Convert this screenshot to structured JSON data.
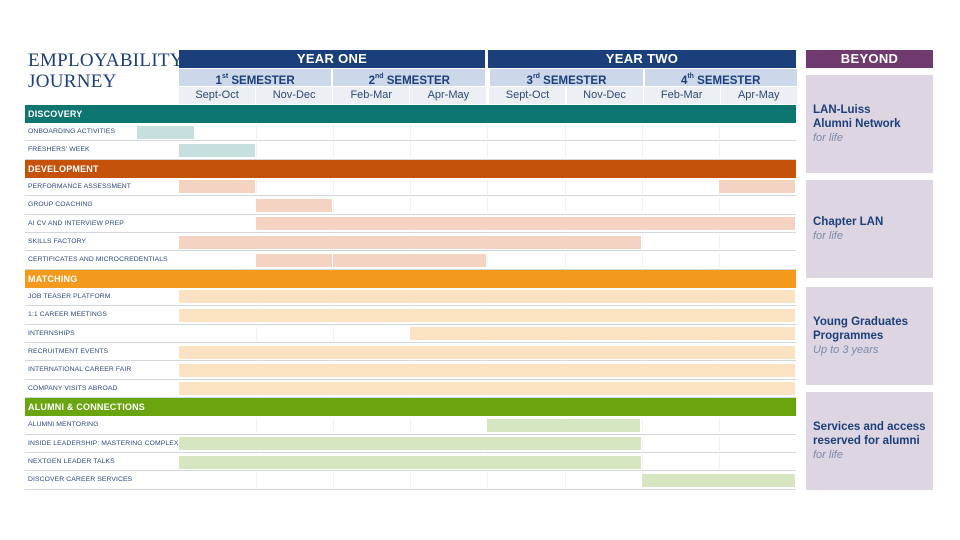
{
  "title": {
    "line1": "EMPLOYABILITY",
    "line2": "JOURNEY"
  },
  "years": [
    {
      "label": "YEAR ONE"
    },
    {
      "label": "YEAR TWO"
    }
  ],
  "semesters": [
    {
      "num": "1",
      "sup": "st",
      "label": "SEMESTER"
    },
    {
      "num": "2",
      "sup": "nd",
      "label": "SEMESTER"
    },
    {
      "num": "3",
      "sup": "rd",
      "label": "SEMESTER"
    },
    {
      "num": "4",
      "sup": "th",
      "label": "SEMESTER"
    }
  ],
  "periods": [
    "Sept-Oct",
    "Nov-Dec",
    "Feb-Mar",
    "Apr-May",
    "Sept-Oct",
    "Nov-Dec",
    "Feb-Mar",
    "Apr-May"
  ],
  "sections": [
    {
      "name": "DISCOVERY",
      "color": "#0e7670",
      "bar_color": "#c5e0df",
      "rows": [
        {
          "label": "ONBOARDING ACTIVITIES",
          "spans": [
            [
              -0.55,
              0.2
            ]
          ]
        },
        {
          "label": "FRESHERS' WEEK",
          "spans": [
            [
              0,
              1
            ]
          ]
        }
      ]
    },
    {
      "name": "DEVELOPMENT",
      "color": "#c4520a",
      "bar_color": "#f4d3c3",
      "rows": [
        {
          "label": "PERFORMANCE ASSESSMENT",
          "spans": [
            [
              0,
              1
            ],
            [
              7,
              8
            ]
          ]
        },
        {
          "label": "GROUP COACHING",
          "spans": [
            [
              1,
              2
            ]
          ]
        },
        {
          "label": "AI CV AND INTERVIEW PREP",
          "spans": [
            [
              1,
              8
            ]
          ]
        },
        {
          "label": "SKILLS FACTORY",
          "spans": [
            [
              0,
              6
            ]
          ]
        },
        {
          "label": "CERTIFICATES AND MICROCREDENTIALS",
          "spans": [
            [
              1,
              2
            ],
            [
              2,
              4
            ]
          ]
        }
      ]
    },
    {
      "name": "MATCHING",
      "color": "#f39a1d",
      "bar_color": "#fbe2c3",
      "rows": [
        {
          "label": "JOB TEASER PLATFORM",
          "spans": [
            [
              0,
              8
            ]
          ]
        },
        {
          "label": "1:1 CAREER MEETINGS",
          "spans": [
            [
              0,
              8
            ]
          ]
        },
        {
          "label": "INTERNSHIPS",
          "spans": [
            [
              3,
              8
            ]
          ]
        },
        {
          "label": "RECRUITMENT EVENTS",
          "spans": [
            [
              0,
              8
            ]
          ]
        },
        {
          "label": "INTERNATIONAL CAREER FAIR",
          "spans": [
            [
              0,
              8
            ]
          ]
        },
        {
          "label": "COMPANY VISITS ABROAD",
          "spans": [
            [
              0,
              8
            ]
          ]
        }
      ]
    },
    {
      "name": "ALUMNI & CONNECTIONS",
      "color": "#6aa40f",
      "bar_color": "#d5e6c0",
      "rows": [
        {
          "label": "ALUMNI MENTORING",
          "spans": [
            [
              4,
              6
            ]
          ]
        },
        {
          "label": "INSIDE LEADERSHIP: MASTERING COMPLEXITY",
          "spans": [
            [
              0,
              6
            ]
          ]
        },
        {
          "label": "NEXTGEN LEADER TALKS",
          "spans": [
            [
              0,
              6
            ]
          ]
        },
        {
          "label": "DISCOVER CAREER SERVICES",
          "spans": [
            [
              6,
              8
            ]
          ]
        }
      ]
    }
  ],
  "beyond": {
    "header": "BEYOND",
    "items": [
      {
        "title_lines": [
          "LAN-Luiss",
          "Alumni Network"
        ],
        "subtitle": "for life"
      },
      {
        "title_lines": [
          "Chapter LAN"
        ],
        "subtitle": "for life"
      },
      {
        "title_lines": [
          "Young Graduates",
          "Programmes"
        ],
        "subtitle": "Up to 3 years"
      },
      {
        "title_lines": [
          "Services and access",
          "reserved for alumni"
        ],
        "subtitle": "for life"
      }
    ]
  },
  "colors": {
    "navy": "#1b3f7a",
    "semester_bg": "#ccd7ea",
    "period_bg": "#eceff3",
    "beyond_header": "#6f3a6d",
    "beyond_box": "#ded5e3"
  }
}
